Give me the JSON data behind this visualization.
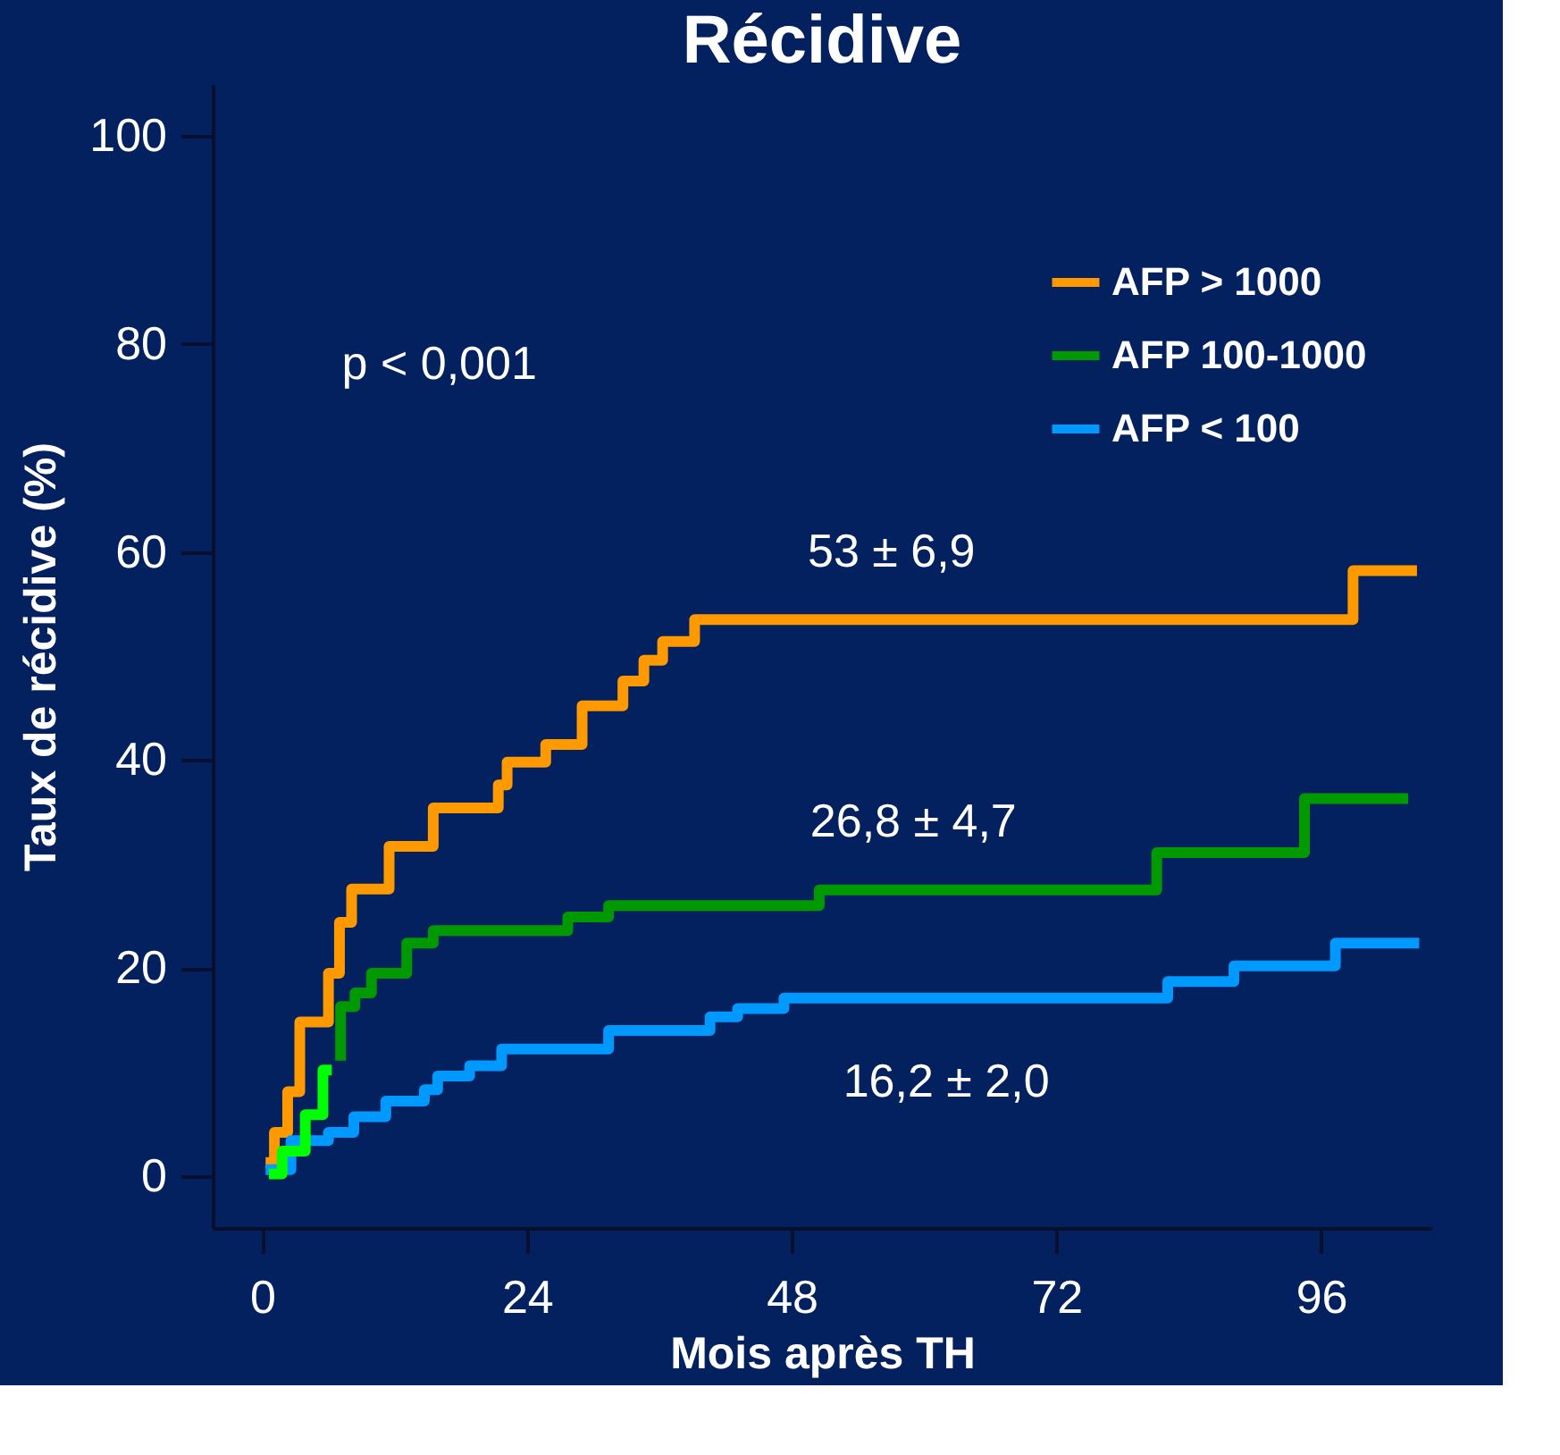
{
  "chart_data": {
    "type": "step",
    "title": "Récidive",
    "xlabel": "Mois après TH",
    "ylabel": "Taux de récidive (%)",
    "xlim": [
      -4.5,
      106
    ],
    "ylim": [
      -5,
      105
    ],
    "xticks": [
      0,
      24,
      48,
      72,
      96
    ],
    "yticks": [
      0,
      20,
      40,
      60,
      80,
      100
    ],
    "grid": false,
    "legend": "top right",
    "series": [
      {
        "name": "AFP > 1000",
        "color": "#ff9900",
        "x": [
          0.3,
          1.1,
          2.3,
          3.4,
          6.0,
          7.0,
          8.1,
          11.5,
          15.5,
          21.4,
          22.2,
          25.7,
          29.0,
          32.7,
          34.6,
          36.3,
          39.2,
          98.9,
          104.7
        ],
        "values": [
          1.3,
          4.2,
          8.1,
          14.8,
          19.5,
          24.4,
          27.6,
          31.7,
          35.4,
          37.6,
          39.8,
          41.5,
          45.2,
          47.6,
          49.6,
          51.4,
          53.5,
          58.2,
          58.2
        ]
      },
      {
        "name": "AFP 100-1000",
        "color": "#009900",
        "x": [
          7.1,
          7.1,
          8.4,
          9.9,
          13.1,
          15.5,
          27.7,
          31.4,
          50.5,
          81.1,
          94.5,
          103.9
        ],
        "values": [
          11.1,
          16.3,
          17.6,
          19.5,
          22.4,
          23.6,
          24.9,
          26.0,
          27.5,
          31.1,
          36.3,
          36.3
        ]
      },
      {
        "color": "#00ff00",
        "x": [
          0.6,
          1.8,
          3.9,
          5.5,
          6.3
        ],
        "values": [
          0.2,
          2.4,
          5.9,
          10.2,
          10.2
        ]
      },
      {
        "name": "AFP < 100",
        "color": "#0099ff",
        "x": [
          0.3,
          2.6,
          6.0,
          8.3,
          11.2,
          14.7,
          15.9,
          18.8,
          21.7,
          31.4,
          40.6,
          43.1,
          47.3,
          82.1,
          88.1,
          97.3,
          104.9
        ],
        "values": [
          0.6,
          3.4,
          4.2,
          5.7,
          7.2,
          8.3,
          9.6,
          10.6,
          12.2,
          14.0,
          15.3,
          16.1,
          17.1,
          18.7,
          20.2,
          22.4,
          22.4
        ]
      }
    ],
    "annotations": [
      "p < 0,001",
      "53 ± 6,9",
      "26,8 ± 4,7",
      "16,2 ± 2,0"
    ]
  }
}
